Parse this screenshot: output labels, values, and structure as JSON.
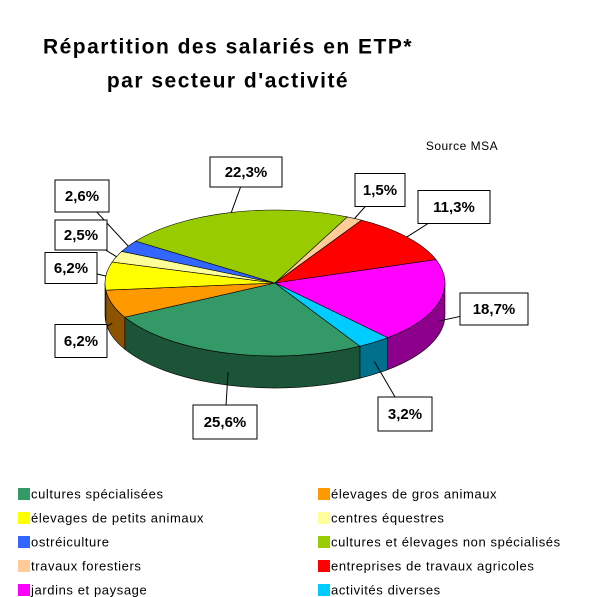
{
  "chart_data": {
    "type": "pie3d",
    "title": [
      "Répartition des salariés en ETP*",
      "par secteur d'activité"
    ],
    "source": "Source MSA",
    "categories": [
      "cultures spécialisées",
      "élevages de gros animaux",
      "élevages de petits animaux",
      "centres équestres",
      "ostréiculture",
      "cultures et élevages non spécialisés",
      "travaux forestiers",
      "entreprises de travaux agricoles",
      "jardins et paysage",
      "activités diverses"
    ],
    "values": [
      25.6,
      6.2,
      6.2,
      2.5,
      2.6,
      22.3,
      1.5,
      11.3,
      18.7,
      3.2
    ],
    "value_labels": [
      "25,6%",
      "6,2%",
      "6,2%",
      "2,5%",
      "2,6%",
      "22,3%",
      "1,5%",
      "11,3%",
      "18,7%",
      "3,2%"
    ],
    "colors": [
      "#339966",
      "#ff9900",
      "#ffff00",
      "#ffff99",
      "#3366ff",
      "#99cc00",
      "#ffcc99",
      "#ff0000",
      "#ff00ff",
      "#00ccff"
    ]
  }
}
